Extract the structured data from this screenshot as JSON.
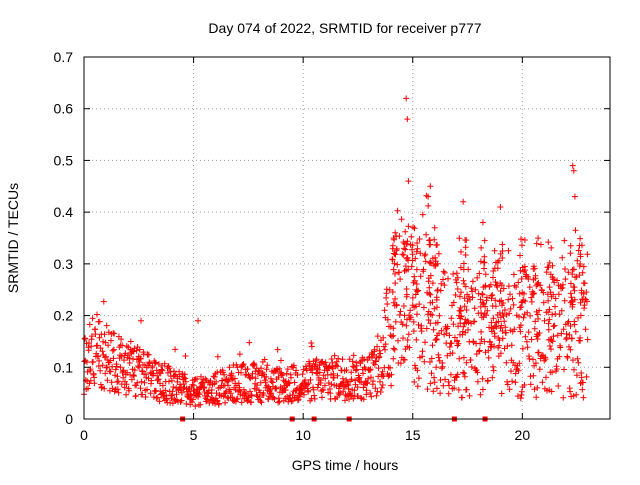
{
  "chart_data": {
    "type": "scatter",
    "title": "Day 074 of 2022, SRMTID for receiver p777",
    "xlabel": "GPS time / hours",
    "ylabel": "SRMTID / TECUs",
    "xlim": [
      0,
      24
    ],
    "ylim": [
      0,
      0.7
    ],
    "xticks": [
      0,
      5,
      10,
      15,
      20
    ],
    "xtick_labels": [
      "0",
      "5",
      "10",
      "15",
      "20"
    ],
    "yticks": [
      0,
      0.1,
      0.2,
      0.3,
      0.4,
      0.5,
      0.6,
      0.7
    ],
    "ytick_labels": [
      "0",
      "0.1",
      "0.2",
      "0.3",
      "0.4",
      "0.5",
      "0.6",
      "0.7"
    ],
    "grid": true,
    "marker": "plus",
    "series_color": "#ff0000",
    "marker_color_bottom": "#ff0000",
    "envelope": {
      "description": "approximate typical SRMTID level vs time (hours)",
      "x": [
        0,
        0.5,
        1,
        2,
        3,
        4,
        5,
        6,
        7,
        8,
        9,
        10,
        11,
        12,
        13,
        13.5,
        14,
        14.5,
        15,
        15.5,
        16,
        17,
        18,
        19,
        20,
        21,
        22,
        22.5,
        23
      ],
      "y": [
        0.1,
        0.14,
        0.12,
        0.1,
        0.08,
        0.065,
        0.05,
        0.06,
        0.07,
        0.07,
        0.065,
        0.07,
        0.08,
        0.08,
        0.08,
        0.1,
        0.2,
        0.25,
        0.22,
        0.2,
        0.18,
        0.16,
        0.17,
        0.15,
        0.16,
        0.17,
        0.16,
        0.18,
        0.15
      ]
    },
    "peaks": [
      {
        "x": 14.7,
        "y": 0.62
      },
      {
        "x": 14.75,
        "y": 0.58
      },
      {
        "x": 14.8,
        "y": 0.46
      },
      {
        "x": 15.8,
        "y": 0.45
      },
      {
        "x": 17.3,
        "y": 0.42
      },
      {
        "x": 19.0,
        "y": 0.41
      },
      {
        "x": 22.3,
        "y": 0.49
      },
      {
        "x": 22.35,
        "y": 0.48
      },
      {
        "x": 22.4,
        "y": 0.43
      },
      {
        "x": 14.2,
        "y": 0.36
      },
      {
        "x": 15.7,
        "y": 0.43
      },
      {
        "x": 16.0,
        "y": 0.37
      },
      {
        "x": 18.2,
        "y": 0.38
      },
      {
        "x": 20.5,
        "y": 0.29
      },
      {
        "x": 21.3,
        "y": 0.28
      },
      {
        "x": 5.2,
        "y": 0.19
      },
      {
        "x": 2.6,
        "y": 0.19
      },
      {
        "x": 10.4,
        "y": 0.14
      }
    ],
    "bottom_markers_x": [
      4.5,
      9.5,
      10.5,
      12.1,
      16.9,
      18.3
    ]
  }
}
